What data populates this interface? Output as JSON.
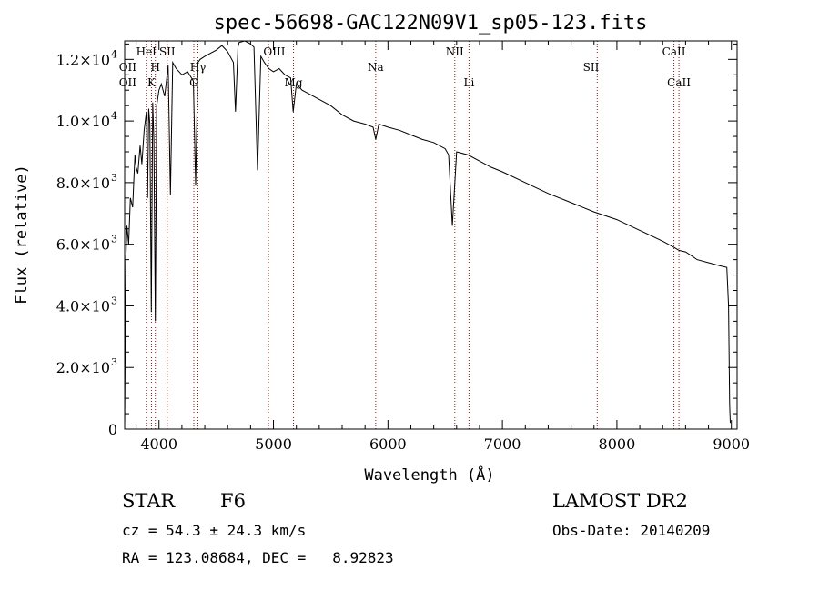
{
  "chart_data": {
    "type": "line",
    "title": "spec-56698-GAC122N09V1_sp05-123.fits",
    "xlabel": "Wavelength (Å)",
    "ylabel": "Flux (relative)",
    "xlim": [
      3700,
      9050
    ],
    "ylim": [
      0,
      12600
    ],
    "x_ticks": [
      4000,
      5000,
      6000,
      7000,
      8000,
      9000
    ],
    "x_tick_labels": [
      "4000",
      "5000",
      "6000",
      "7000",
      "8000",
      "9000"
    ],
    "y_ticks": [
      0,
      2000,
      4000,
      6000,
      8000,
      10000,
      12000
    ],
    "y_tick_labels": [
      {
        "mant": "0",
        "exp": ""
      },
      {
        "mant": "2.0×10",
        "exp": "3"
      },
      {
        "mant": "4.0×10",
        "exp": "3"
      },
      {
        "mant": "6.0×10",
        "exp": "3"
      },
      {
        "mant": "8.0×10",
        "exp": "3"
      },
      {
        "mant": "1.0×10",
        "exp": "4"
      },
      {
        "mant": "1.2×10",
        "exp": "4"
      }
    ],
    "grid": false,
    "line_color": "#000000",
    "line_marker_color": "#8b1a1a",
    "series": [
      {
        "x": [
          3700,
          3710,
          3720,
          3735,
          3750,
          3770,
          3790,
          3800,
          3815,
          3835,
          3850,
          3870,
          3890,
          3900,
          3910,
          3920,
          3933,
          3945,
          3955,
          3968,
          3980,
          4000,
          4020,
          4050,
          4080,
          4100,
          4120,
          4150,
          4200,
          4250,
          4300,
          4320,
          4340,
          4360,
          4400,
          4450,
          4500,
          4550,
          4600,
          4650,
          4668,
          4690,
          4700,
          4750,
          4800,
          4830,
          4861,
          4890,
          4920,
          4960,
          5000,
          5050,
          5100,
          5150,
          5172,
          5200,
          5250,
          5300,
          5400,
          5500,
          5600,
          5700,
          5800,
          5870,
          5893,
          5920,
          6000,
          6100,
          6200,
          6300,
          6400,
          6500,
          6530,
          6563,
          6600,
          6700,
          6800,
          6900,
          7000,
          7200,
          7400,
          7600,
          7800,
          8000,
          8200,
          8400,
          8498,
          8542,
          8600,
          8662,
          8700,
          8800,
          8900,
          8960,
          8975,
          8985,
          8990
        ],
        "y": [
          0,
          5500,
          6600,
          6000,
          7500,
          7200,
          8900,
          8500,
          8300,
          9200,
          8600,
          9700,
          10300,
          7500,
          10400,
          9900,
          3800,
          10600,
          9400,
          3500,
          10500,
          11000,
          11200,
          10800,
          11800,
          7600,
          11900,
          11700,
          11500,
          11600,
          11300,
          7900,
          11900,
          12000,
          12100,
          12200,
          12300,
          12450,
          12250,
          11900,
          10300,
          12400,
          12550,
          12600,
          12500,
          12400,
          8400,
          12100,
          11900,
          11700,
          11600,
          11700,
          11500,
          11400,
          10300,
          11200,
          11000,
          10900,
          10700,
          10500,
          10200,
          10000,
          9900,
          9800,
          9400,
          9900,
          9800,
          9700,
          9550,
          9400,
          9300,
          9100,
          8900,
          6600,
          9000,
          8900,
          8700,
          8500,
          8350,
          8000,
          7650,
          7350,
          7050,
          6800,
          6450,
          6100,
          5900,
          5800,
          5750,
          5600,
          5500,
          5400,
          5300,
          5250,
          4000,
          800,
          200
        ]
      }
    ],
    "line_labels": [
      {
        "name": "OII",
        "x": 3727,
        "row": 2
      },
      {
        "name": "OII",
        "x": 3727,
        "row": 3
      },
      {
        "name": "HeI",
        "x": 3889,
        "row": 1
      },
      {
        "name": "K",
        "x": 3934,
        "row": 3
      },
      {
        "name": "H",
        "x": 3968,
        "row": 2
      },
      {
        "name": "SII",
        "x": 4072,
        "row": 1
      },
      {
        "name": "Hγ",
        "x": 4340,
        "row": 2
      },
      {
        "name": "G",
        "x": 4304,
        "row": 3
      },
      {
        "name": "OIII",
        "x": 5007,
        "row": 1
      },
      {
        "name": "Mg",
        "x": 5175,
        "row": 3
      },
      {
        "name": "Na",
        "x": 5893,
        "row": 2
      },
      {
        "name": "NII",
        "x": 6584,
        "row": 1
      },
      {
        "name": "Li",
        "x": 6708,
        "row": 3
      },
      {
        "name": "SII",
        "x": 7774,
        "row": 2
      },
      {
        "name": "CaII",
        "x": 8498,
        "row": 1
      },
      {
        "name": "CaII",
        "x": 8542,
        "row": 3
      }
    ],
    "marker_lines": [
      3889,
      3934,
      3968,
      4072,
      4304,
      4340,
      4956,
      5175,
      5893,
      6584,
      6708,
      7828,
      8498,
      8542
    ]
  },
  "info": {
    "class": "STAR",
    "subclass": "F6",
    "survey": "LAMOST DR2",
    "cz": "cz = 54.3 ± 24.3 km/s",
    "obs_date": "Obs-Date: 20140209",
    "coords": "RA = 123.08684, DEC =   8.92823"
  }
}
